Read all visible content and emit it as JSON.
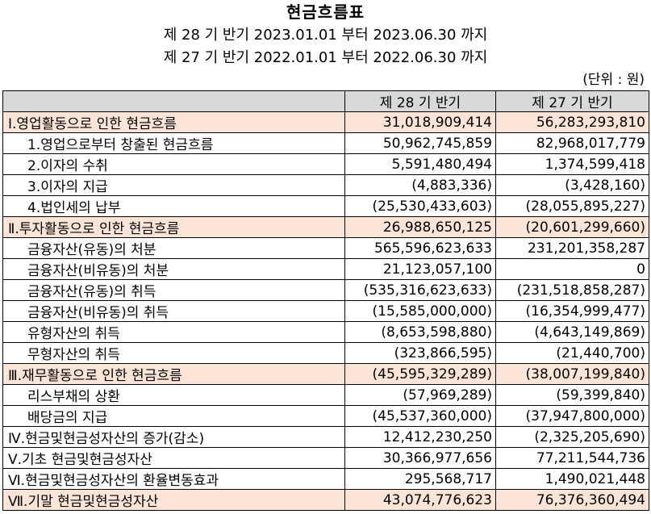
{
  "title": "현금흐름표",
  "period_current": "제 28 기 반기 2023.01.01 부터 2023.06.30 까지",
  "period_prior": "제 27 기 반기 2022.01.01 부터 2022.06.30 까지",
  "unit": "(단위 : 원)",
  "columns": {
    "label": "",
    "current": "제 28 기 반기",
    "prior": "제 27 기 반기"
  },
  "rows": [
    {
      "label": "Ⅰ.영업활동으로 인한 현금흐름",
      "current": "31,018,909,414",
      "prior": "56,283,293,810"
    },
    {
      "label": "1.영업으로부터 창출된 현금흐름",
      "current": "50,962,745,859",
      "prior": "82,968,017,779"
    },
    {
      "label": "2.이자의 수취",
      "current": "5,591,480,494",
      "prior": "1,374,599,418"
    },
    {
      "label": "3.이자의 지급",
      "current": "(4,883,336)",
      "prior": "(3,428,160)"
    },
    {
      "label": "4.법인세의 납부",
      "current": "(25,530,433,603)",
      "prior": "(28,055,895,227)"
    },
    {
      "label": "Ⅱ.투자활동으로 인한 현금흐름",
      "current": "26,988,650,125",
      "prior": "(20,601,299,660)"
    },
    {
      "label": "금융자산(유동)의 처분",
      "current": "565,596,623,633",
      "prior": "231,201,358,287"
    },
    {
      "label": "금융자산(비유동)의 처분",
      "current": "21,123,057,100",
      "prior": "0"
    },
    {
      "label": "금융자산(유동)의 취득",
      "current": "(535,316,623,633)",
      "prior": "(231,518,858,287)"
    },
    {
      "label": "금융자산(비유동)의 취득",
      "current": "(15,585,000,000)",
      "prior": "(16,354,999,477)"
    },
    {
      "label": "유형자산의 취득",
      "current": "(8,653,598,880)",
      "prior": "(4,643,149,869)"
    },
    {
      "label": "무형자산의 취득",
      "current": "(323,866,595)",
      "prior": "(21,440,700)"
    },
    {
      "label": "Ⅲ.재무활동으로 인한 현금흐름",
      "current": "(45,595,329,289)",
      "prior": "(38,007,199,840)"
    },
    {
      "label": "리스부채의 상환",
      "current": "(57,969,289)",
      "prior": "(59,399,840)"
    },
    {
      "label": "배당금의 지급",
      "current": "(45,537,360,000)",
      "prior": "(37,947,800,000)"
    },
    {
      "label": "Ⅳ.현금및현금성자산의 증가(감소)",
      "current": "12,412,230,250",
      "prior": "(2,325,205,690)"
    },
    {
      "label": "Ⅴ.기초 현금및현금성자산",
      "current": "30,366,977,656",
      "prior": "77,211,544,736"
    },
    {
      "label": "Ⅵ.현금및현금성자산의 환율변동효과",
      "current": "295,568,717",
      "prior": "1,490,021,448"
    },
    {
      "label": "Ⅶ.기말 현금및현금성자산",
      "current": "43,074,776,623",
      "prior": "76,376,360,494"
    }
  ]
}
